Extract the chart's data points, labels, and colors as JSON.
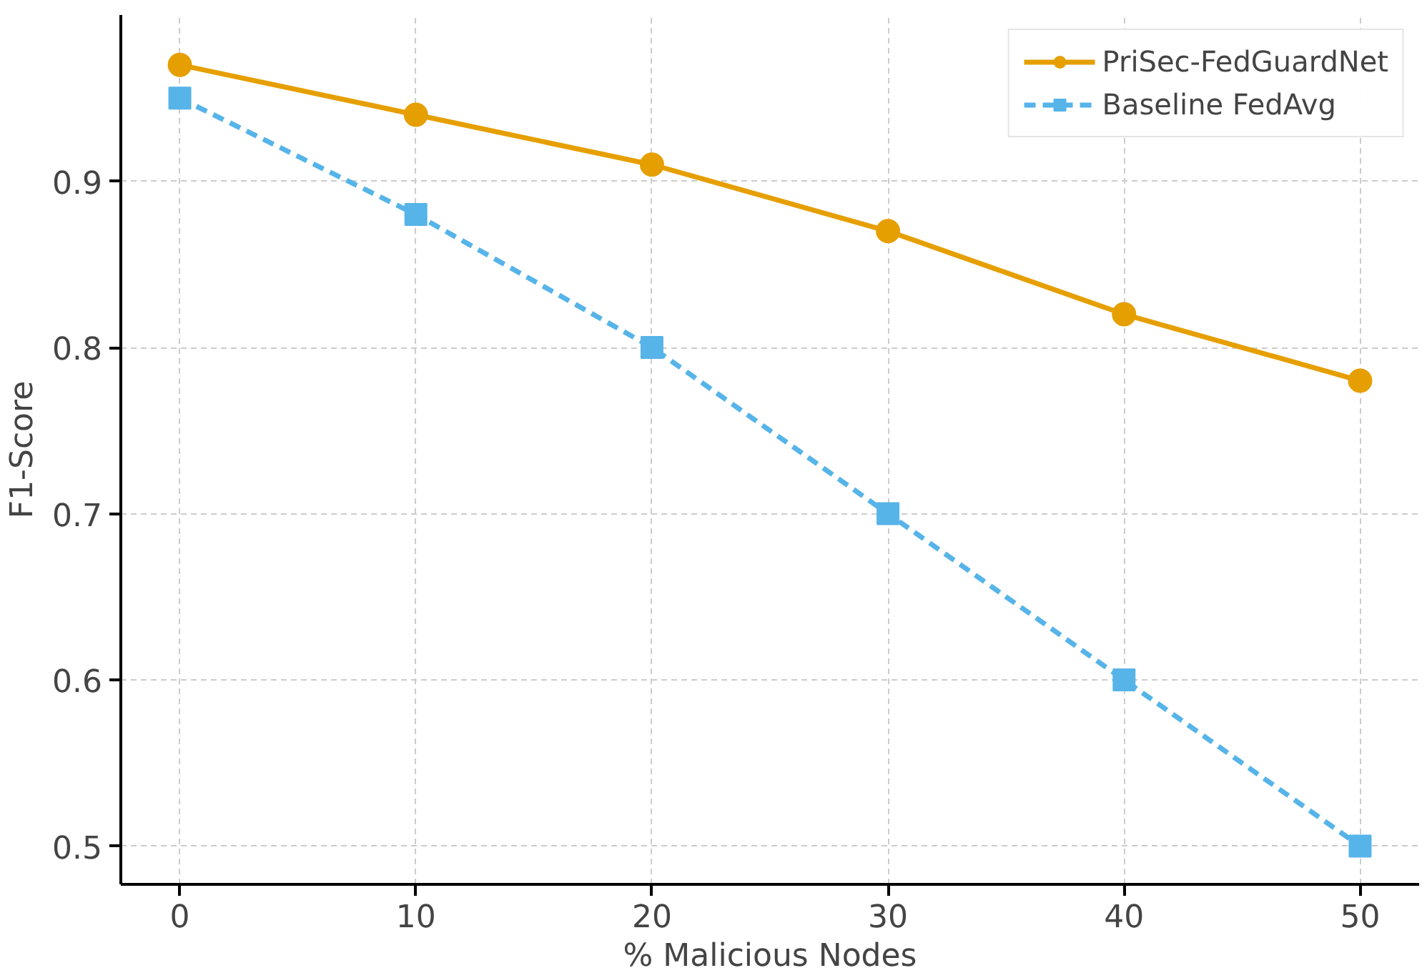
{
  "chart_data": {
    "type": "line",
    "xlabel": "% Malicious Nodes",
    "ylabel": "F1-Score",
    "x": [
      0,
      10,
      20,
      30,
      40,
      50
    ],
    "series": [
      {
        "name": "PriSec-FedGuardNet",
        "color": "#e69f00",
        "values": [
          0.97,
          0.94,
          0.91,
          0.87,
          0.82,
          0.78
        ],
        "marker": "circle",
        "line_style": "solid"
      },
      {
        "name": "Baseline FedAvg",
        "color": "#56b4e9",
        "values": [
          0.95,
          0.88,
          0.8,
          0.7,
          0.6,
          0.5
        ],
        "marker": "square",
        "line_style": "dashed"
      }
    ],
    "xlim": [
      -2.5,
      52.5
    ],
    "ylim": [
      0.477,
      1.0
    ],
    "xticks": [
      0,
      10,
      20,
      30,
      40,
      50
    ],
    "yticks": [
      0.5,
      0.6,
      0.7,
      0.8,
      0.9
    ],
    "grid": true,
    "legend": "top right"
  }
}
